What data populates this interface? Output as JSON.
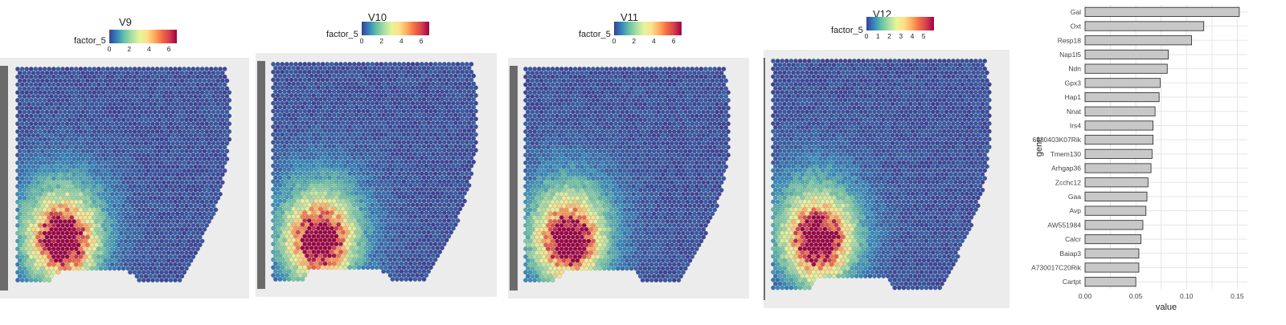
{
  "panels": [
    {
      "title": "V9",
      "legend_label": "factor_5",
      "ticks": [
        "0",
        "2",
        "4",
        "6"
      ],
      "max": 6.8
    },
    {
      "title": "V10",
      "legend_label": "factor_5",
      "ticks": [
        "0",
        "2",
        "4",
        "6"
      ],
      "max": 6.8
    },
    {
      "title": "V11",
      "legend_label": "factor_5",
      "ticks": [
        "0",
        "2",
        "4",
        "6"
      ],
      "max": 6.8
    },
    {
      "title": "V12",
      "legend_label": "factor_5",
      "ticks": [
        "0",
        "1",
        "2",
        "3",
        "4",
        "5"
      ],
      "max": 5.9
    }
  ],
  "colors": {
    "palette": [
      "#3b3f96",
      "#3288bd",
      "#66c2a5",
      "#abdda4",
      "#e6f598",
      "#fee08b",
      "#fdae61",
      "#f46d43",
      "#d53e4f",
      "#9e0142"
    ],
    "bar_fill": "#c8c8c8",
    "bar_stroke": "#222222",
    "grid": "#e5e5e5"
  },
  "chart_data": {
    "type": "bar",
    "orientation": "horizontal",
    "ylabel": "gene",
    "xlabel": "value",
    "xlim": [
      0,
      0.16
    ],
    "xticks": [
      "0.00",
      "0.05",
      "0.10",
      "0.15"
    ],
    "xtick_values": [
      0,
      0.05,
      0.1,
      0.15
    ],
    "categories": [
      "Gal",
      "Oxt",
      "Resp18",
      "Nap1l5",
      "Ndn",
      "Gpx3",
      "Hap1",
      "Nnat",
      "Irs4",
      "6330403K07Rik",
      "Tmem130",
      "Arhgap36",
      "Zcchc12",
      "Gaa",
      "Avp",
      "AW551984",
      "Calcr",
      "Baiap3",
      "A730017C20Rik",
      "Cartpt"
    ],
    "values": [
      0.152,
      0.117,
      0.105,
      0.082,
      0.081,
      0.074,
      0.073,
      0.069,
      0.067,
      0.067,
      0.066,
      0.065,
      0.062,
      0.061,
      0.06,
      0.057,
      0.055,
      0.053,
      0.053,
      0.05
    ]
  }
}
